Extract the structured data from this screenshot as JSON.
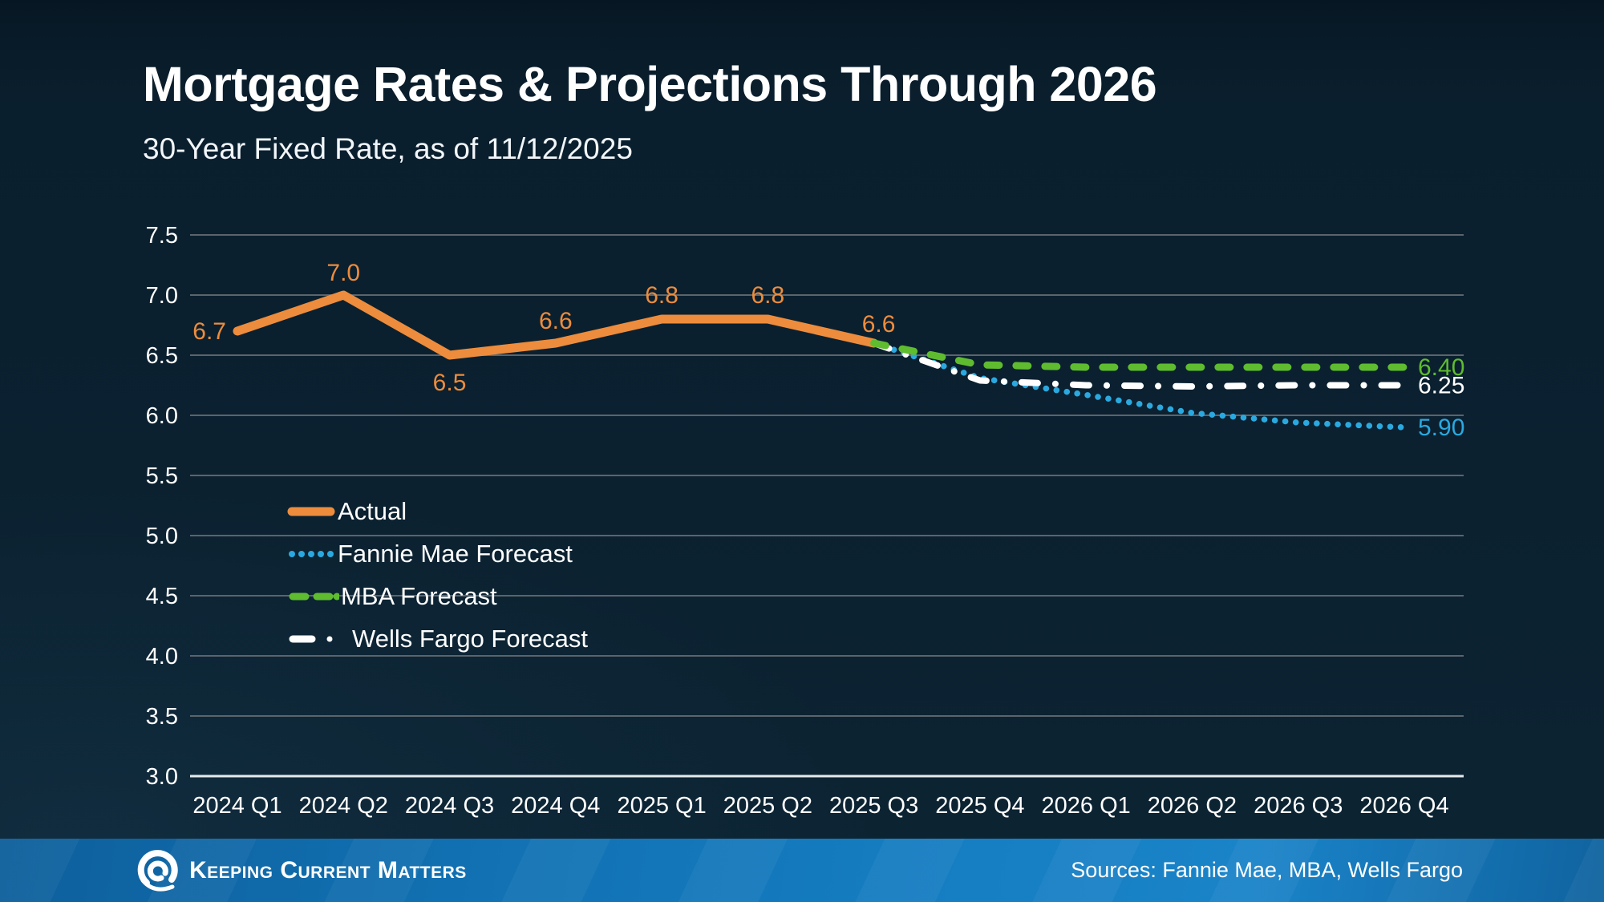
{
  "title": "Mortgage Rates & Projections Through 2026",
  "subtitle": "30-Year Fixed Rate, as of 11/12/2025",
  "footer": {
    "brand": "Keeping Current Matters",
    "sources": "Sources: Fannie Mae, MBA, Wells Fargo"
  },
  "colors": {
    "background": "#0b2130",
    "accent_orange": "#ed8c3c",
    "accent_blue": "#2aa9e0",
    "accent_green": "#5fbc2f",
    "accent_white": "#ffffff",
    "gridline": "#5b646c",
    "axis_line": "#e6ebee",
    "footer_blue": "#1478be"
  },
  "chart_data": {
    "type": "line",
    "title": "Mortgage Rates & Projections Through 2026",
    "subtitle": "30-Year Fixed Rate, as of 11/12/2025",
    "categories": [
      "2024 Q1",
      "2024 Q2",
      "2024 Q3",
      "2024 Q4",
      "2025 Q1",
      "2025 Q2",
      "2025 Q3",
      "2025 Q4",
      "2026 Q1",
      "2026 Q2",
      "2026 Q3",
      "2026 Q4"
    ],
    "ylim": [
      3.0,
      7.5
    ],
    "ytick_step": 0.5,
    "yticks": [
      "7.5",
      "7.0",
      "6.5",
      "6.0",
      "5.5",
      "5.0",
      "4.5",
      "4.0",
      "3.5",
      "3.0"
    ],
    "grid": true,
    "legend_position": "inside-left",
    "series": [
      {
        "name": "Actual",
        "color": "#ed8c3c",
        "style": "solid",
        "start_index": 0,
        "values": [
          6.7,
          7.0,
          6.5,
          6.6,
          6.8,
          6.8,
          6.6
        ],
        "point_labels": [
          "6.7",
          "7.0",
          "6.5",
          "6.6",
          "6.8",
          "6.8",
          "6.6"
        ]
      },
      {
        "name": "MBA Forecast",
        "color": "#5fbc2f",
        "style": "dashed",
        "start_index": 6,
        "values": [
          6.6,
          6.42,
          6.4,
          6.4,
          6.4,
          6.4
        ],
        "end_label": "6.40"
      },
      {
        "name": "Wells Fargo Forecast",
        "color": "#ffffff",
        "style": "dash-dot",
        "start_index": 6,
        "values": [
          6.6,
          6.29,
          6.25,
          6.24,
          6.25,
          6.25
        ],
        "end_label": "6.25"
      },
      {
        "name": "Fannie Mae Forecast",
        "color": "#2aa9e0",
        "style": "dotted",
        "start_index": 6,
        "values": [
          6.6,
          6.31,
          6.17,
          6.02,
          5.94,
          5.9
        ],
        "end_label": "5.90"
      }
    ]
  }
}
